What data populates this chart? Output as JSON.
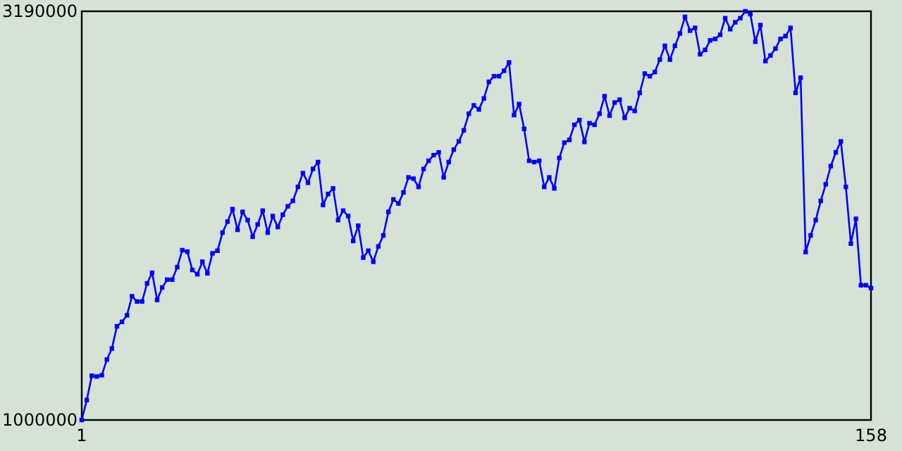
{
  "chart_data": {
    "type": "line",
    "xlim": [
      1,
      158
    ],
    "xticks": [
      1,
      158
    ],
    "ylim": [
      1000000,
      3190000
    ],
    "yticks": [
      1000000,
      3190000
    ],
    "marker": "square",
    "x": [
      1,
      2,
      3,
      4,
      5,
      6,
      7,
      8,
      9,
      10,
      11,
      12,
      13,
      14,
      15,
      16,
      17,
      18,
      19,
      20,
      21,
      22,
      23,
      24,
      25,
      26,
      27,
      28,
      29,
      30,
      31,
      32,
      33,
      34,
      35,
      36,
      37,
      38,
      39,
      40,
      41,
      42,
      43,
      44,
      45,
      46,
      47,
      48,
      49,
      50,
      51,
      52,
      53,
      54,
      55,
      56,
      57,
      58,
      59,
      60,
      61,
      62,
      63,
      64,
      65,
      66,
      67,
      68,
      69,
      70,
      71,
      72,
      73,
      74,
      75,
      76,
      77,
      78,
      79,
      80,
      81,
      82,
      83,
      84,
      85,
      86,
      87,
      88,
      89,
      90,
      91,
      92,
      93,
      94,
      95,
      96,
      97,
      98,
      99,
      100,
      101,
      102,
      103,
      104,
      105,
      106,
      107,
      108,
      109,
      110,
      111,
      112,
      113,
      114,
      115,
      116,
      117,
      118,
      119,
      120,
      121,
      122,
      123,
      124,
      125,
      126,
      127,
      128,
      129,
      130,
      131,
      132,
      133,
      134,
      135,
      136,
      137,
      138,
      139,
      140,
      141,
      142,
      143,
      144,
      145,
      146,
      147,
      148,
      149,
      150,
      151,
      152,
      153,
      154,
      155,
      156,
      157,
      158
    ],
    "series": [
      {
        "color": "#0000ff",
        "values": [
          1000000,
          1107000,
          1237000,
          1233000,
          1240000,
          1324000,
          1383000,
          1502000,
          1526000,
          1561000,
          1663000,
          1635000,
          1635000,
          1732000,
          1789000,
          1643000,
          1710000,
          1752000,
          1752000,
          1819000,
          1910000,
          1902000,
          1804000,
          1781000,
          1848000,
          1786000,
          1893000,
          1907000,
          2004000,
          2063000,
          2130000,
          2019000,
          2115000,
          2071000,
          1982000,
          2048000,
          2122000,
          2004000,
          2093000,
          2034000,
          2100000,
          2145000,
          2174000,
          2249000,
          2323000,
          2271000,
          2345000,
          2382000,
          2152000,
          2211000,
          2241000,
          2071000,
          2122000,
          2093000,
          1959000,
          2041000,
          1870000,
          1907000,
          1848000,
          1930000,
          1989000,
          2115000,
          2182000,
          2160000,
          2219000,
          2300000,
          2293000,
          2249000,
          2345000,
          2389000,
          2419000,
          2434000,
          2300000,
          2382000,
          2449000,
          2493000,
          2552000,
          2641000,
          2686000,
          2664000,
          2723000,
          2812000,
          2842000,
          2842000,
          2871000,
          2916000,
          2634000,
          2693000,
          2560000,
          2389000,
          2382000,
          2389000,
          2249000,
          2300000,
          2241000,
          2404000,
          2486000,
          2501000,
          2582000,
          2607000,
          2490000,
          2590000,
          2582000,
          2641000,
          2735000,
          2631000,
          2701000,
          2716000,
          2619000,
          2671000,
          2656000,
          2753000,
          2856000,
          2842000,
          2864000,
          2931000,
          3005000,
          2931000,
          3005000,
          3071000,
          3160000,
          3086000,
          3101000,
          2960000,
          2983000,
          3034000,
          3042000,
          3064000,
          3153000,
          3094000,
          3131000,
          3153000,
          3190000,
          3175000,
          3027000,
          3116000,
          2923000,
          2953000,
          2990000,
          3042000,
          3057000,
          3101000,
          2753000,
          2834000,
          1900000,
          1989000,
          2071000,
          2174000,
          2263000,
          2360000,
          2434000,
          2493000,
          2249000,
          1945000,
          2078000,
          1722000,
          1722000,
          1707000
        ]
      }
    ]
  }
}
